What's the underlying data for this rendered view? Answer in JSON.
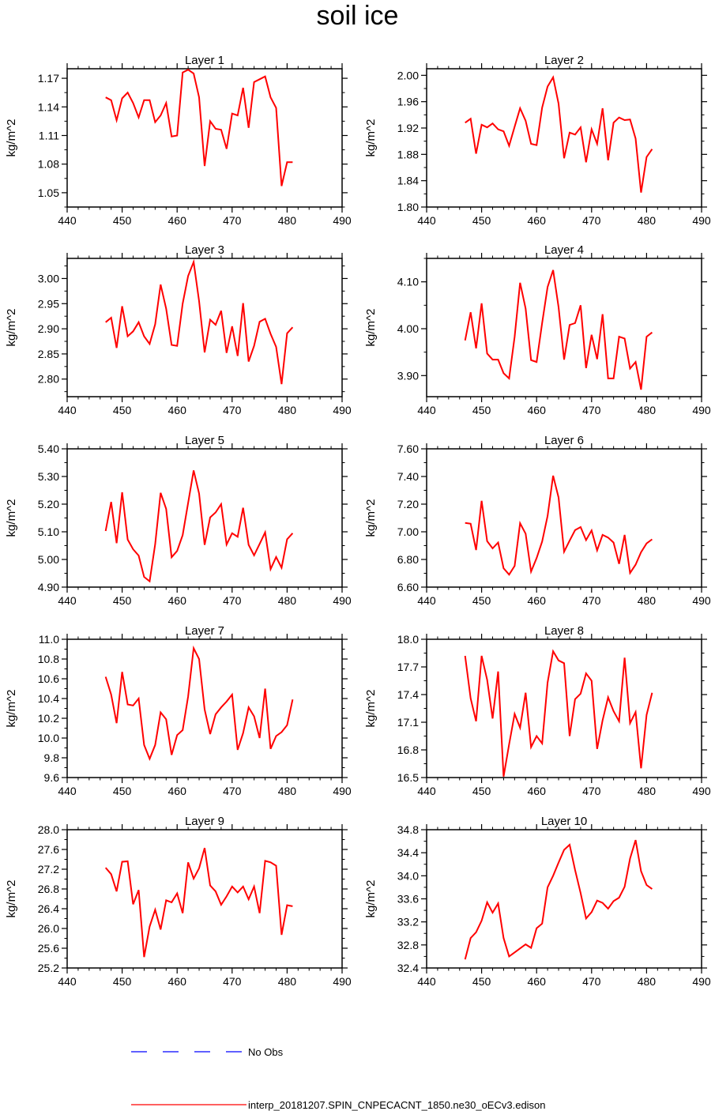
{
  "title": "soil ice",
  "legend": {
    "items": [
      {
        "label": "No Obs",
        "color": "#0000ff",
        "style": "dashed"
      },
      {
        "label": "interp_20181207.SPIN_CNPECACNT_1850.ne30_oECv3.edison",
        "color": "#ff0000",
        "style": "solid"
      }
    ]
  },
  "chart_data": [
    {
      "type": "line",
      "title": "Layer 1",
      "ylabel": "kg/m^2",
      "xlim": [
        440,
        490
      ],
      "ylim": [
        1.035,
        1.18
      ],
      "xticks": [
        "440",
        "450",
        "460",
        "470",
        "480",
        "490"
      ],
      "yticks": [
        "1.05",
        "1.08",
        "1.11",
        "1.14",
        "1.17"
      ],
      "x": [
        447,
        448,
        449,
        450,
        451,
        452,
        453,
        454,
        455,
        456,
        457,
        458,
        459,
        460,
        461,
        462,
        463,
        464,
        465,
        466,
        467,
        468,
        469,
        470,
        471,
        472,
        473,
        474,
        475,
        476,
        477,
        478,
        479,
        480,
        481
      ],
      "series": [
        {
          "color": "#ff0000",
          "values": [
            1.15,
            1.147,
            1.126,
            1.149,
            1.155,
            1.144,
            1.129,
            1.147,
            1.147,
            1.124,
            1.131,
            1.144,
            1.109,
            1.11,
            1.176,
            1.179,
            1.175,
            1.15,
            1.078,
            1.125,
            1.117,
            1.116,
            1.096,
            1.133,
            1.131,
            1.16,
            1.118,
            1.166,
            1.169,
            1.172,
            1.15,
            1.139,
            1.057,
            1.082,
            1.082
          ]
        }
      ]
    },
    {
      "type": "line",
      "title": "Layer 2",
      "ylabel": "kg/m^2",
      "xlim": [
        440,
        490
      ],
      "ylim": [
        1.8,
        2.01
      ],
      "xticks": [
        "440",
        "450",
        "460",
        "470",
        "480",
        "490"
      ],
      "yticks": [
        "1.80",
        "1.84",
        "1.88",
        "1.92",
        "1.96",
        "2.00"
      ],
      "x": [
        447,
        448,
        449,
        450,
        451,
        452,
        453,
        454,
        455,
        456,
        457,
        458,
        459,
        460,
        461,
        462,
        463,
        464,
        465,
        466,
        467,
        468,
        469,
        470,
        471,
        472,
        473,
        474,
        475,
        476,
        477,
        478,
        479,
        480,
        481
      ],
      "series": [
        {
          "color": "#ff0000",
          "values": [
            1.928,
            1.934,
            1.881,
            1.925,
            1.921,
            1.927,
            1.918,
            1.915,
            1.893,
            1.922,
            1.95,
            1.931,
            1.896,
            1.894,
            1.951,
            1.983,
            1.997,
            1.957,
            1.874,
            1.913,
            1.91,
            1.921,
            1.868,
            1.918,
            1.896,
            1.95,
            1.871,
            1.928,
            1.936,
            1.932,
            1.933,
            1.904,
            1.822,
            1.876,
            1.888
          ]
        }
      ]
    },
    {
      "type": "line",
      "title": "Layer 3",
      "ylabel": "kg/m^2",
      "xlim": [
        440,
        490
      ],
      "ylim": [
        2.765,
        3.04
      ],
      "xticks": [
        "440",
        "450",
        "460",
        "470",
        "480",
        "490"
      ],
      "yticks": [
        "2.80",
        "2.85",
        "2.90",
        "2.95",
        "3.00"
      ],
      "x": [
        447,
        448,
        449,
        450,
        451,
        452,
        453,
        454,
        455,
        456,
        457,
        458,
        459,
        460,
        461,
        462,
        463,
        464,
        465,
        466,
        467,
        468,
        469,
        470,
        471,
        472,
        473,
        474,
        475,
        476,
        477,
        478,
        479,
        480,
        481
      ],
      "series": [
        {
          "color": "#ff0000",
          "values": [
            2.913,
            2.922,
            2.862,
            2.945,
            2.885,
            2.895,
            2.913,
            2.885,
            2.87,
            2.909,
            2.988,
            2.94,
            2.868,
            2.866,
            2.95,
            3.005,
            3.033,
            2.955,
            2.853,
            2.918,
            2.908,
            2.936,
            2.852,
            2.905,
            2.846,
            2.951,
            2.835,
            2.866,
            2.914,
            2.92,
            2.89,
            2.864,
            2.79,
            2.891,
            2.903
          ]
        }
      ]
    },
    {
      "type": "line",
      "title": "Layer 4",
      "ylabel": "kg/m^2",
      "xlim": [
        440,
        490
      ],
      "ylim": [
        3.855,
        4.15
      ],
      "xticks": [
        "440",
        "450",
        "460",
        "470",
        "480",
        "490"
      ],
      "yticks": [
        "3.90",
        "4.00",
        "4.10"
      ],
      "x": [
        447,
        448,
        449,
        450,
        451,
        452,
        453,
        454,
        455,
        456,
        457,
        458,
        459,
        460,
        461,
        462,
        463,
        464,
        465,
        466,
        467,
        468,
        469,
        470,
        471,
        472,
        473,
        474,
        475,
        476,
        477,
        478,
        479,
        480,
        481
      ],
      "series": [
        {
          "color": "#ff0000",
          "values": [
            3.975,
            4.035,
            3.958,
            4.054,
            3.947,
            3.934,
            3.934,
            3.905,
            3.894,
            3.983,
            4.098,
            4.043,
            3.933,
            3.929,
            4.012,
            4.089,
            4.125,
            4.046,
            3.934,
            4.008,
            4.012,
            4.05,
            3.916,
            3.987,
            3.935,
            4.031,
            3.894,
            3.894,
            3.983,
            3.979,
            3.915,
            3.929,
            3.87,
            3.983,
            3.992
          ]
        }
      ]
    },
    {
      "type": "line",
      "title": "Layer 5",
      "ylabel": "kg/m^2",
      "xlim": [
        440,
        490
      ],
      "ylim": [
        4.9,
        5.4
      ],
      "xticks": [
        "440",
        "450",
        "460",
        "470",
        "480",
        "490"
      ],
      "yticks": [
        "4.90",
        "5.00",
        "5.10",
        "5.20",
        "5.30",
        "5.40"
      ],
      "x": [
        447,
        448,
        449,
        450,
        451,
        452,
        453,
        454,
        455,
        456,
        457,
        458,
        459,
        460,
        461,
        462,
        463,
        464,
        465,
        466,
        467,
        468,
        469,
        470,
        471,
        472,
        473,
        474,
        475,
        476,
        477,
        478,
        479,
        480,
        481
      ],
      "series": [
        {
          "color": "#ff0000",
          "values": [
            5.103,
            5.208,
            5.059,
            5.243,
            5.072,
            5.037,
            5.014,
            4.937,
            4.921,
            5.055,
            5.241,
            5.183,
            5.008,
            5.031,
            5.088,
            5.204,
            5.322,
            5.238,
            5.053,
            5.152,
            5.17,
            5.2,
            5.054,
            5.095,
            5.082,
            5.187,
            5.053,
            5.015,
            5.056,
            5.098,
            4.965,
            5.009,
            4.97,
            5.073,
            5.095
          ]
        }
      ]
    },
    {
      "type": "line",
      "title": "Layer 6",
      "ylabel": "kg/m^2",
      "xlim": [
        440,
        490
      ],
      "ylim": [
        6.6,
        7.6
      ],
      "xticks": [
        "440",
        "450",
        "460",
        "470",
        "480",
        "490"
      ],
      "yticks": [
        "6.60",
        "6.80",
        "7.00",
        "7.20",
        "7.40",
        "7.60"
      ],
      "x": [
        447,
        448,
        449,
        450,
        451,
        452,
        453,
        454,
        455,
        456,
        457,
        458,
        459,
        460,
        461,
        462,
        463,
        464,
        465,
        466,
        467,
        468,
        469,
        470,
        471,
        472,
        473,
        474,
        475,
        476,
        477,
        478,
        479,
        480,
        481
      ],
      "series": [
        {
          "color": "#ff0000",
          "values": [
            7.064,
            7.058,
            6.868,
            7.224,
            6.932,
            6.88,
            6.922,
            6.736,
            6.69,
            6.754,
            7.062,
            6.986,
            6.712,
            6.81,
            6.93,
            7.114,
            7.406,
            7.248,
            6.856,
            6.936,
            7.012,
            7.034,
            6.94,
            7.01,
            6.866,
            6.978,
            6.958,
            6.922,
            6.768,
            6.978,
            6.702,
            6.762,
            6.852,
            6.916,
            6.946
          ]
        }
      ]
    },
    {
      "type": "line",
      "title": "Layer 7",
      "ylabel": "kg/m^2",
      "xlim": [
        440,
        490
      ],
      "ylim": [
        9.6,
        11.0
      ],
      "xticks": [
        "440",
        "450",
        "460",
        "470",
        "480",
        "490"
      ],
      "yticks": [
        "9.6",
        "9.8",
        "10.0",
        "10.2",
        "10.4",
        "10.6",
        "10.8",
        "11.0"
      ],
      "x": [
        447,
        448,
        449,
        450,
        451,
        452,
        453,
        454,
        455,
        456,
        457,
        458,
        459,
        460,
        461,
        462,
        463,
        464,
        465,
        466,
        467,
        468,
        469,
        470,
        471,
        472,
        473,
        474,
        475,
        476,
        477,
        478,
        479,
        480,
        481
      ],
      "series": [
        {
          "color": "#ff0000",
          "values": [
            10.62,
            10.44,
            10.15,
            10.67,
            10.34,
            10.33,
            10.4,
            9.93,
            9.79,
            9.93,
            10.26,
            10.19,
            9.83,
            10.03,
            10.08,
            10.42,
            10.91,
            10.8,
            10.29,
            10.04,
            10.24,
            10.31,
            10.37,
            10.44,
            9.88,
            10.05,
            10.31,
            10.22,
            10.0,
            10.5,
            9.89,
            10.02,
            10.06,
            10.13,
            10.39
          ]
        }
      ]
    },
    {
      "type": "line",
      "title": "Layer 8",
      "ylabel": "kg/m^2",
      "xlim": [
        440,
        490
      ],
      "ylim": [
        16.5,
        18.0
      ],
      "xticks": [
        "440",
        "450",
        "460",
        "470",
        "480",
        "490"
      ],
      "yticks": [
        "16.5",
        "16.8",
        "17.1",
        "17.4",
        "17.7",
        "18.0"
      ],
      "x": [
        447,
        448,
        449,
        450,
        451,
        452,
        453,
        454,
        455,
        456,
        457,
        458,
        459,
        460,
        461,
        462,
        463,
        464,
        465,
        466,
        467,
        468,
        469,
        470,
        471,
        472,
        473,
        474,
        475,
        476,
        477,
        478,
        479,
        480,
        481
      ],
      "series": [
        {
          "color": "#ff0000",
          "values": [
            17.82,
            17.36,
            17.11,
            17.82,
            17.56,
            17.14,
            17.65,
            16.51,
            16.86,
            17.19,
            17.04,
            17.42,
            16.83,
            16.95,
            16.87,
            17.53,
            17.87,
            17.77,
            17.74,
            16.95,
            17.35,
            17.41,
            17.63,
            17.55,
            16.81,
            17.12,
            17.37,
            17.22,
            17.11,
            17.8,
            17.09,
            17.21,
            16.6,
            17.18,
            17.42
          ]
        }
      ]
    },
    {
      "type": "line",
      "title": "Layer 9",
      "ylabel": "kg/m^2",
      "xlim": [
        440,
        490
      ],
      "ylim": [
        25.2,
        28.0
      ],
      "xticks": [
        "440",
        "450",
        "460",
        "470",
        "480",
        "490"
      ],
      "yticks": [
        "25.2",
        "25.6",
        "26.0",
        "26.4",
        "26.8",
        "27.2",
        "27.6",
        "28.0"
      ],
      "x": [
        447,
        448,
        449,
        450,
        451,
        452,
        453,
        454,
        455,
        456,
        457,
        458,
        459,
        460,
        461,
        462,
        463,
        464,
        465,
        466,
        467,
        468,
        469,
        470,
        471,
        472,
        473,
        474,
        475,
        476,
        477,
        478,
        479,
        480,
        481
      ],
      "series": [
        {
          "color": "#ff0000",
          "values": [
            27.23,
            27.1,
            26.75,
            27.35,
            27.36,
            26.49,
            26.78,
            25.42,
            26.04,
            26.38,
            25.98,
            26.57,
            26.53,
            26.71,
            26.31,
            27.34,
            27.01,
            27.22,
            27.63,
            26.87,
            26.75,
            26.48,
            26.65,
            26.85,
            26.73,
            26.85,
            26.59,
            26.85,
            26.31,
            27.37,
            27.34,
            27.27,
            25.87,
            26.47,
            26.45
          ]
        }
      ]
    },
    {
      "type": "line",
      "title": "Layer 10",
      "ylabel": "kg/m^2",
      "xlim": [
        440,
        490
      ],
      "ylim": [
        32.4,
        34.8
      ],
      "xticks": [
        "440",
        "450",
        "460",
        "470",
        "480",
        "490"
      ],
      "yticks": [
        "32.4",
        "32.8",
        "33.2",
        "33.6",
        "34.0",
        "34.4",
        "34.8"
      ],
      "x": [
        447,
        448,
        449,
        450,
        451,
        452,
        453,
        454,
        455,
        456,
        457,
        458,
        459,
        460,
        461,
        462,
        463,
        464,
        465,
        466,
        467,
        468,
        469,
        470,
        471,
        472,
        473,
        474,
        475,
        476,
        477,
        478,
        479,
        480,
        481
      ],
      "series": [
        {
          "color": "#ff0000",
          "values": [
            32.55,
            32.92,
            33.02,
            33.22,
            33.54,
            33.36,
            33.52,
            32.92,
            32.6,
            32.67,
            32.74,
            32.81,
            32.75,
            33.09,
            33.17,
            33.8,
            34.0,
            34.23,
            34.45,
            34.54,
            34.1,
            33.7,
            33.26,
            33.37,
            33.57,
            33.53,
            33.43,
            33.56,
            33.62,
            33.81,
            34.3,
            34.62,
            34.08,
            33.84,
            33.77
          ]
        }
      ]
    }
  ]
}
